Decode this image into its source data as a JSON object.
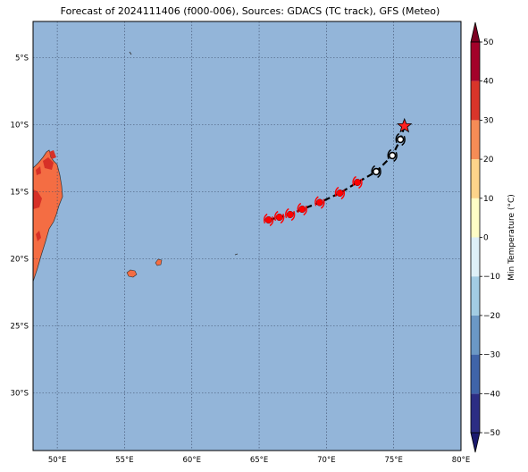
{
  "title": "Forecast of 2024111406 (f000-006), Sources: GDACS (TC track), GFS (Meteo)",
  "map": {
    "lon_range": [
      48.2,
      80
    ],
    "lat_range": [
      -34.3,
      -2.3
    ],
    "lon_ticks": [
      {
        "value": 50,
        "label": "50°E"
      },
      {
        "value": 55,
        "label": "55°E"
      },
      {
        "value": 60,
        "label": "60°E"
      },
      {
        "value": 65,
        "label": "65°E"
      },
      {
        "value": 70,
        "label": "70°E"
      },
      {
        "value": 75,
        "label": "75°E"
      },
      {
        "value": 80,
        "label": "80°E"
      }
    ],
    "lat_ticks": [
      {
        "value": -5,
        "label": "5°S"
      },
      {
        "value": -10,
        "label": "10°S"
      },
      {
        "value": -15,
        "label": "15°S"
      },
      {
        "value": -20,
        "label": "20°S"
      },
      {
        "value": -25,
        "label": "25°S"
      },
      {
        "value": -30,
        "label": "30°S"
      }
    ],
    "ocean_color": "#93b5d9",
    "grid": true
  },
  "track": {
    "points": [
      {
        "lon": 75.8,
        "lat": -10.1,
        "kind": "current"
      },
      {
        "lon": 75.5,
        "lat": -11.1,
        "kind": "low"
      },
      {
        "lon": 74.9,
        "lat": -12.3,
        "kind": "low"
      },
      {
        "lon": 73.7,
        "lat": -13.5,
        "kind": "low"
      },
      {
        "lon": 72.3,
        "lat": -14.3,
        "kind": "storm"
      },
      {
        "lon": 71.0,
        "lat": -15.1,
        "kind": "storm"
      },
      {
        "lon": 69.5,
        "lat": -15.8,
        "kind": "storm"
      },
      {
        "lon": 68.2,
        "lat": -16.3,
        "kind": "storm"
      },
      {
        "lon": 67.3,
        "lat": -16.7,
        "kind": "storm"
      },
      {
        "lon": 66.5,
        "lat": -16.9,
        "kind": "storm"
      },
      {
        "lon": 65.7,
        "lat": -17.1,
        "kind": "storm"
      }
    ],
    "storm_color": "#ff0000",
    "current_color": "#ff2020"
  },
  "colorbar": {
    "label": "Min Temperature (°C)",
    "levels": [
      -50,
      -40,
      -30,
      -20,
      -10,
      0,
      10,
      20,
      30,
      40,
      50
    ],
    "tick_labels": [
      "−50",
      "−40",
      "−30",
      "−20",
      "−10",
      "0",
      "10",
      "20",
      "30",
      "40",
      "50"
    ],
    "colors": [
      "#2c2d84",
      "#3f64a9",
      "#6b98c5",
      "#a2cce3",
      "#def0f7",
      "#fefdc5",
      "#fdd48a",
      "#f68c56",
      "#d9352a",
      "#a3022a"
    ],
    "under_color": "#1b1a6e",
    "over_color": "#7c0122"
  }
}
